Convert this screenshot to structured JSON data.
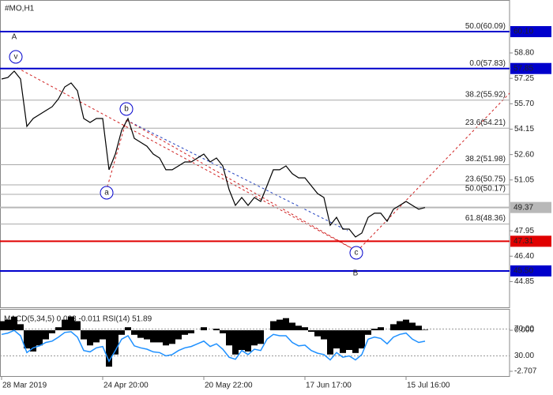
{
  "chart_data": [
    {
      "type": "line",
      "title": "#MO,H1",
      "color": "#000000",
      "xlim": [
        0,
        80.375
      ],
      "ylim": [
        43.28,
        62.03
      ],
      "xticks": [
        {
          "value": 0,
          "label": "28 Mar 2019"
        },
        {
          "value": 16,
          "label": "24 Apr 20:00"
        },
        {
          "value": 32,
          "label": "20 May 22:00"
        },
        {
          "value": 48,
          "label": "17 Jun 17:00"
        },
        {
          "value": 64,
          "label": "15 Jul 16:00"
        }
      ],
      "yticks": [
        {
          "value": 58.8,
          "label": "58.80"
        },
        57.25,
        {
          "value": 55.7,
          "label": "55.70"
        },
        54.15,
        {
          "value": 52.6,
          "label": "52.60"
        },
        51.05,
        47.95,
        {
          "value": 46.4,
          "label": "46.40"
        },
        44.85
      ],
      "values": [
        57.21,
        57.3,
        57.69,
        57.21,
        54.32,
        54.8,
        55.04,
        55.28,
        55.52,
        56.0,
        56.73,
        56.97,
        56.49,
        54.8,
        54.56,
        54.8,
        54.8,
        51.67,
        52.63,
        54.08,
        54.8,
        53.59,
        53.35,
        53.11,
        52.63,
        52.39,
        51.67,
        51.67,
        51.91,
        52.15,
        52.15,
        52.39,
        52.63,
        52.15,
        52.39,
        51.91,
        50.46,
        49.5,
        49.98,
        49.5,
        49.98,
        49.74,
        50.7,
        51.67,
        51.67,
        51.91,
        51.43,
        51.18,
        51.18,
        50.7,
        50.22,
        49.98,
        48.29,
        48.77,
        48.05,
        48.05,
        47.57,
        47.81,
        48.77,
        49.02,
        49.02,
        48.53,
        49.26,
        49.5,
        49.74,
        49.5,
        49.26,
        49.37
      ],
      "levels": [
        {
          "value": 60.1,
          "label": "60.10",
          "color": "#0000cc"
        },
        {
          "value": 57.85,
          "label": "57.85",
          "color": "#0000cc"
        },
        {
          "value": 49.37,
          "label": "49.37",
          "color": "#b8b8b8"
        },
        {
          "value": 47.31,
          "label": "47.31",
          "color": "#e00000"
        },
        {
          "value": 45.5,
          "label": "45.50",
          "color": "#0000cc"
        }
      ],
      "fibonacci": [
        {
          "value": 60.09,
          "label": "50.0(60.09)"
        },
        {
          "value": 57.83,
          "label": "0.0(57.83)"
        },
        {
          "value": 55.92,
          "label": "38.2(55.92)"
        },
        {
          "value": 54.21,
          "label": "23.6(54.21)"
        },
        {
          "value": 51.98,
          "label": "38.2(51.98)"
        },
        {
          "value": 50.75,
          "label": "23.6(50.75)"
        },
        {
          "value": 50.17,
          "label": "50.0(50.17)"
        },
        {
          "value": 48.36,
          "label": "61.8(48.36)"
        }
      ],
      "waves": [
        {
          "label": "A",
          "circled": false,
          "color": "#8b1010"
        },
        {
          "label": "v",
          "circled": true,
          "color": "#0000cc"
        },
        {
          "label": "b",
          "circled": true,
          "color": "#0000cc"
        },
        {
          "label": "a",
          "circled": true,
          "color": "#0000cc"
        },
        {
          "label": "c",
          "circled": true,
          "color": "#0000cc"
        },
        {
          "label": "B",
          "circled": false,
          "color": "#8b1010"
        }
      ]
    },
    {
      "type": "indicator",
      "label": "MACD(5,34,5) 0.033 -0.011 RSI(14) 51.89",
      "macd_color": "#000000",
      "rsi_color": "#1e90ff",
      "macd_ylim": [
        -3.02,
        1.41
      ],
      "rsi_ylim": [
        0,
        100
      ],
      "macd_ticks": [
        {
          "value": 0,
          "label": "0.000"
        },
        {
          "value": -2.707,
          "label": "-2.707"
        }
      ],
      "rsi_ticks": [
        {
          "value": 70,
          "label": "70.00"
        },
        {
          "value": 30,
          "label": "30.00"
        }
      ],
      "macd_values": [
        0.6,
        0.7,
        0.9,
        0.4,
        -1.2,
        -1.4,
        -1.0,
        -0.6,
        -0.2,
        0.2,
        0.7,
        0.9,
        0.6,
        -0.6,
        -1.0,
        -0.8,
        -0.6,
        -2.4,
        -1.6,
        -0.3,
        0.2,
        -0.3,
        -0.5,
        -0.6,
        -0.8,
        -0.8,
        -1.0,
        -0.9,
        -0.6,
        -0.3,
        -0.2,
        0.0,
        0.2,
        0.0,
        0.1,
        -0.2,
        -1.0,
        -1.6,
        -1.3,
        -1.4,
        -1.0,
        -0.9,
        0.0,
        0.6,
        0.7,
        0.8,
        0.5,
        0.3,
        0.2,
        -0.1,
        -0.4,
        -0.6,
        -1.6,
        -1.2,
        -1.5,
        -1.3,
        -1.5,
        -1.2,
        -0.3,
        0.1,
        0.2,
        0.0,
        0.4,
        0.6,
        0.7,
        0.5,
        0.3,
        0.033
      ],
      "rsi_values": [
        62,
        64,
        68,
        60,
        35,
        42,
        45,
        50,
        52,
        58,
        65,
        66,
        58,
        38,
        36,
        42,
        44,
        22,
        38,
        55,
        60,
        45,
        42,
        40,
        36,
        35,
        30,
        32,
        38,
        42,
        44,
        48,
        52,
        44,
        48,
        40,
        28,
        25,
        38,
        32,
        40,
        38,
        55,
        62,
        60,
        60,
        50,
        45,
        46,
        38,
        34,
        32,
        24,
        35,
        28,
        30,
        24,
        32,
        55,
        58,
        56,
        48,
        58,
        62,
        64,
        55,
        50,
        51.89
      ]
    }
  ]
}
